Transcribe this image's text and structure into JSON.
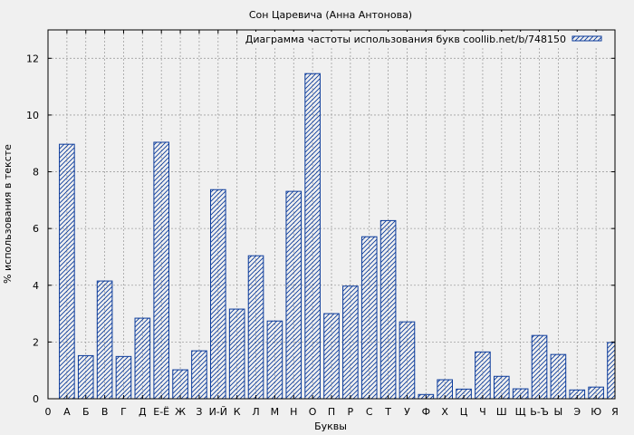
{
  "chart_data": {
    "type": "bar",
    "title": "Сон Царевича (Анна Антонова)",
    "xlabel": "Буквы",
    "ylabel": "% использования в тексте",
    "legend": {
      "label": "Диаграмма частоты использования букв coollib.net/b/748150",
      "placement": "top-right"
    },
    "grid": true,
    "ylim": [
      0,
      13
    ],
    "x_ticks": [
      "0",
      "А",
      "Б",
      "В",
      "Г",
      "Д",
      "Е-Ё",
      "Ж",
      "З",
      "И-Й",
      "К",
      "Л",
      "М",
      "Н",
      "О",
      "П",
      "Р",
      "С",
      "Т",
      "У",
      "Ф",
      "Х",
      "Ц",
      "Ч",
      "Ш",
      "Щ",
      "Ь-Ъ",
      "Ы",
      "Э",
      "Ю",
      "Я"
    ],
    "y_ticks": [
      "0",
      "2",
      "4",
      "6",
      "8",
      "10",
      "12"
    ],
    "y_tick_values": [
      0,
      2,
      4,
      6,
      8,
      10,
      12
    ],
    "categories": [
      "А",
      "Б",
      "В",
      "Г",
      "Д",
      "Е-Ё",
      "Ж",
      "З",
      "И-Й",
      "К",
      "Л",
      "М",
      "Н",
      "О",
      "П",
      "Р",
      "С",
      "Т",
      "У",
      "Ф",
      "Х",
      "Ц",
      "Ч",
      "Ш",
      "Щ",
      "Ь-Ъ",
      "Ы",
      "Э",
      "Ю",
      "Я"
    ],
    "values": [
      8.97,
      1.52,
      4.15,
      1.49,
      2.84,
      9.04,
      1.02,
      1.69,
      7.37,
      3.16,
      5.04,
      2.74,
      7.31,
      11.46,
      3.0,
      3.97,
      5.71,
      6.28,
      2.71,
      0.15,
      0.67,
      0.34,
      1.65,
      0.79,
      0.35,
      2.23,
      1.56,
      0.31,
      0.41,
      1.98
    ],
    "bar_color": "#0b3b9b",
    "background_color": "#f0f0f0",
    "grid_color": "#a0a0a0"
  }
}
